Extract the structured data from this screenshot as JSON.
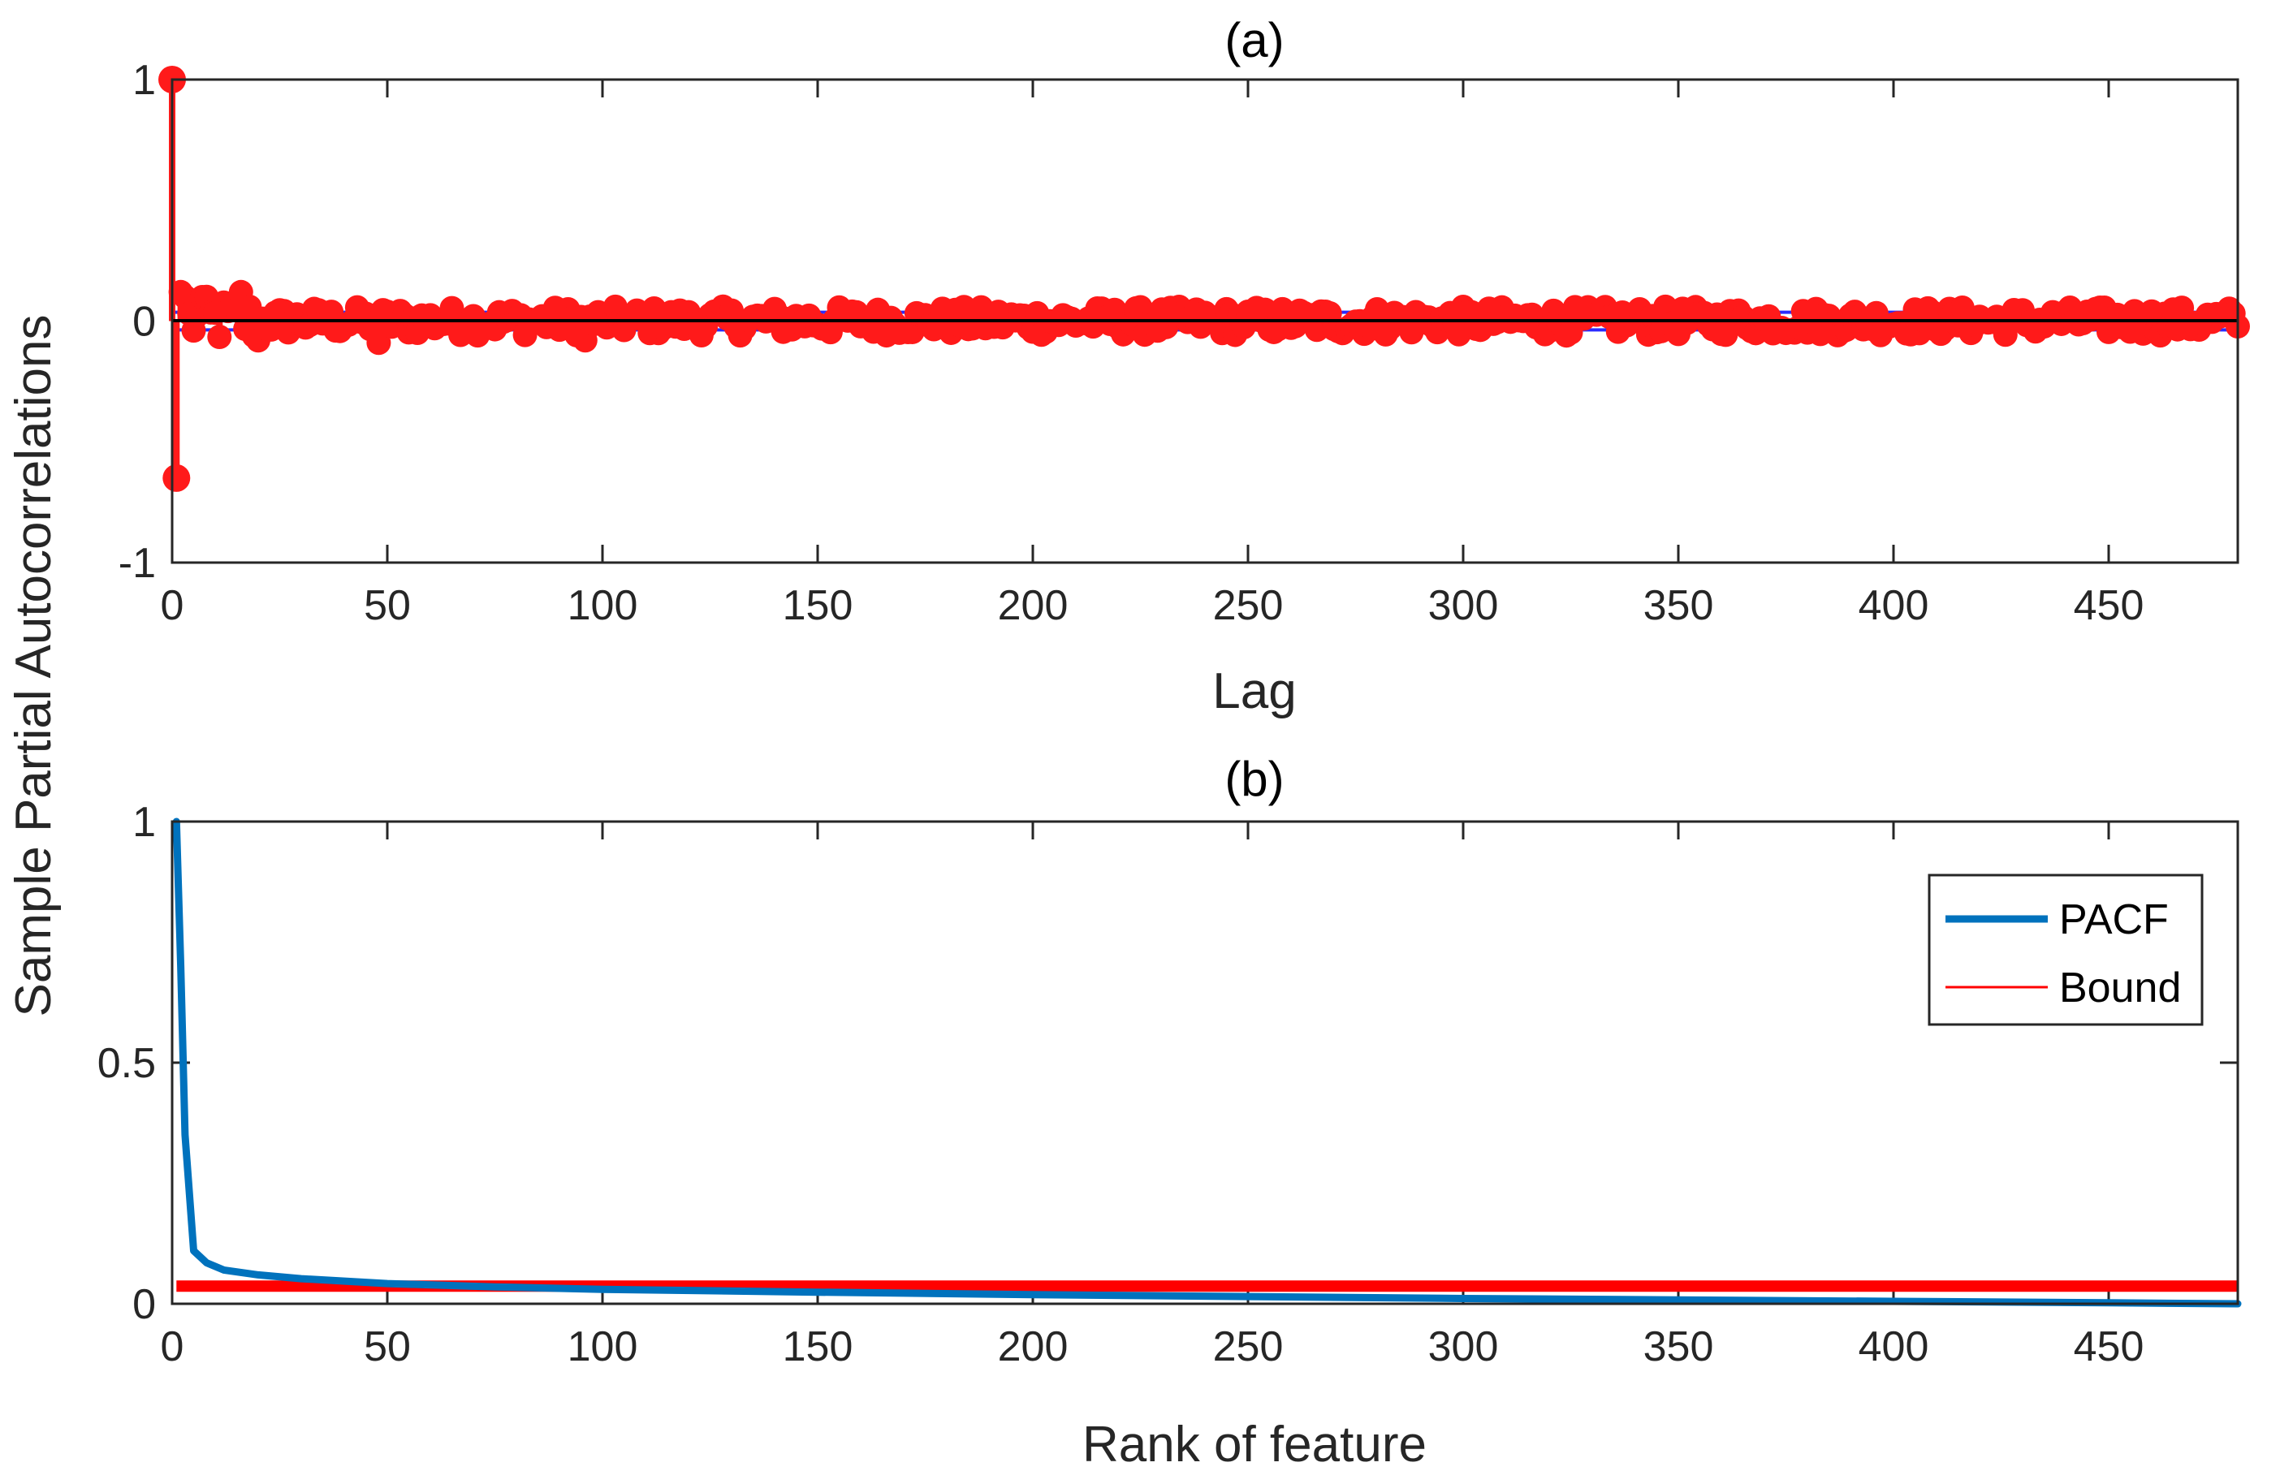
{
  "figure": {
    "ylabel": "Sample Partial Autocorrelations"
  },
  "colors": {
    "pacf_red": "#ff1a1a",
    "bound_blue": "#2b2bff",
    "zero_line": "#000000",
    "pacf_blue": "#0072bd",
    "bound_red": "#ff0000",
    "axis": "#262626"
  },
  "chart_data": [
    {
      "id": "a",
      "type": "stem",
      "title": "(a)",
      "xlabel": "Lag",
      "xlim": [
        0,
        480
      ],
      "ylim": [
        -1,
        1
      ],
      "xticks": [
        0,
        50,
        100,
        150,
        200,
        250,
        300,
        350,
        400,
        450
      ],
      "yticks": [
        -1,
        0,
        1
      ],
      "xtick_labels": [
        "0",
        "50",
        "100",
        "150",
        "200",
        "250",
        "300",
        "350",
        "400",
        "450"
      ],
      "ytick_labels": [
        "-1",
        "0",
        "1"
      ],
      "confidence_bounds": [
        0.0365,
        -0.0365
      ],
      "lags_shown_explicitly": [
        {
          "lag": 0,
          "value": 1.0
        },
        {
          "lag": 1,
          "value": -0.65
        },
        {
          "lag": 2,
          "value": 0.12
        },
        {
          "lag": 3,
          "value": 0.1
        },
        {
          "lag": 8,
          "value": 0.1
        },
        {
          "lag": 16,
          "value": 0.12
        },
        {
          "lag": 20,
          "value": -0.08
        },
        {
          "lag": 48,
          "value": -0.09
        },
        {
          "lag": 96,
          "value": -0.08
        }
      ],
      "noise_amplitude_beyond_lag_20": 0.06
    },
    {
      "id": "b",
      "type": "line",
      "title": "(b)",
      "xlabel": "Rank of feature",
      "xlim": [
        0,
        480
      ],
      "ylim": [
        0,
        1
      ],
      "xticks": [
        0,
        50,
        100,
        150,
        200,
        250,
        300,
        350,
        400,
        450
      ],
      "yticks": [
        0,
        0.5,
        1
      ],
      "xtick_labels": [
        "0",
        "50",
        "100",
        "150",
        "200",
        "250",
        "300",
        "350",
        "400",
        "450"
      ],
      "ytick_labels": [
        "0",
        "0.5",
        "1"
      ],
      "legend_position": "upper-right",
      "series": [
        {
          "name": "PACF",
          "x": [
            1,
            2,
            3,
            5,
            8,
            12,
            20,
            30,
            50,
            75,
            100,
            150,
            200,
            250,
            300,
            350,
            400,
            450,
            480
          ],
          "values": [
            1.0,
            0.7,
            0.35,
            0.11,
            0.085,
            0.07,
            0.06,
            0.052,
            0.042,
            0.035,
            0.03,
            0.024,
            0.019,
            0.015,
            0.011,
            0.008,
            0.005,
            0.002,
            0.0
          ]
        },
        {
          "name": "Bound",
          "x": [
            1,
            480
          ],
          "values": [
            0.0365,
            0.0365
          ]
        }
      ]
    }
  ]
}
